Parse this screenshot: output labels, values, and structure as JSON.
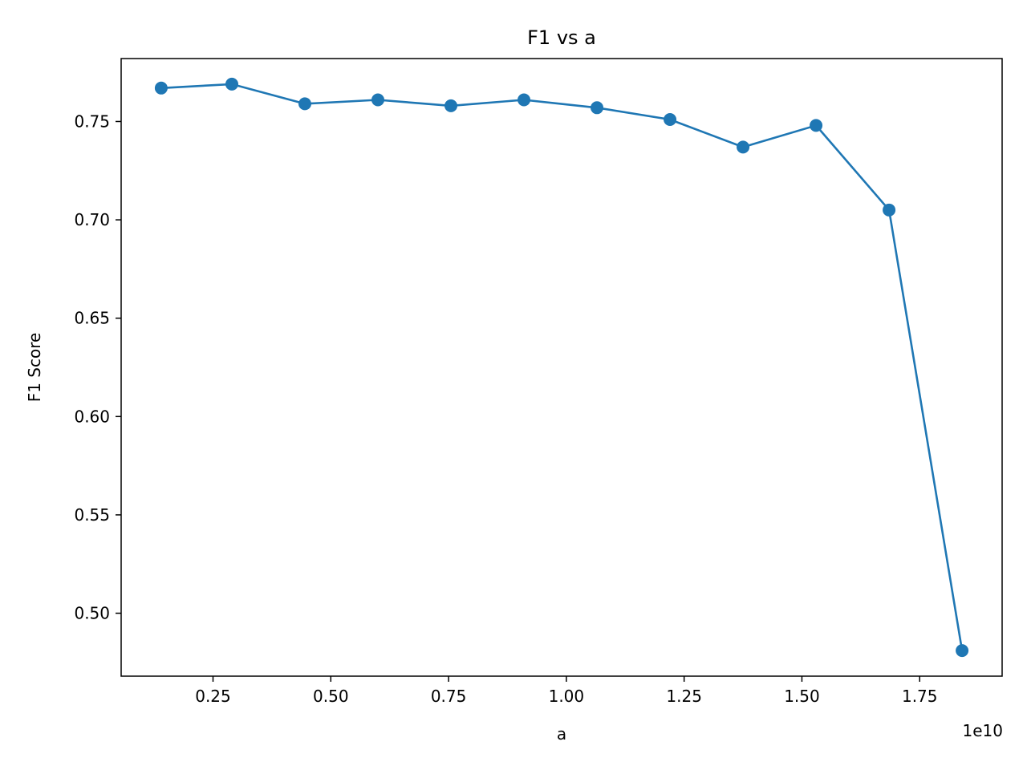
{
  "chart_data": {
    "type": "line",
    "title": "F1 vs a",
    "xlabel": "a",
    "ylabel": "F1 Score",
    "x_offset_label": "1e10",
    "x_scale": 10000000000.0,
    "x": [
      1400000000.0,
      2900000000.0,
      4450000000.0,
      6000000000.0,
      7550000000.0,
      9100000000.0,
      10650000000.0,
      12200000000.0,
      13750000000.0,
      15300000000.0,
      16850000000.0,
      18400000000.0
    ],
    "series": [
      {
        "name": "",
        "color": "#1f77b4",
        "marker": "circle",
        "values": [
          0.767,
          0.769,
          0.759,
          0.761,
          0.758,
          0.761,
          0.757,
          0.751,
          0.737,
          0.748,
          0.705,
          0.481
        ]
      }
    ],
    "xlim": [
      550000000.0,
      19250000000.0
    ],
    "ylim": [
      0.468,
      0.782
    ],
    "xticks": [
      2500000000.0,
      5000000000.0,
      7500000000.0,
      10000000000.0,
      12500000000.0,
      15000000000.0,
      17500000000.0
    ],
    "xtick_labels": [
      "0.25",
      "0.50",
      "0.75",
      "1.00",
      "1.25",
      "1.50",
      "1.75"
    ],
    "yticks": [
      0.5,
      0.55,
      0.6,
      0.65,
      0.7,
      0.75
    ],
    "ytick_labels": [
      "0.50",
      "0.55",
      "0.60",
      "0.65",
      "0.70",
      "0.75"
    ],
    "grid": false,
    "legend": "none"
  }
}
